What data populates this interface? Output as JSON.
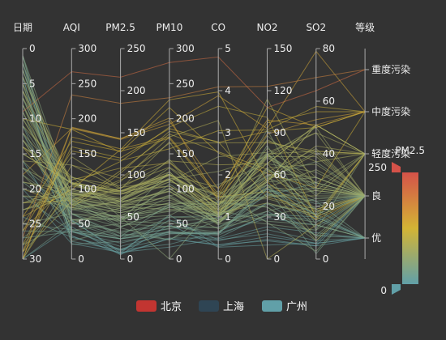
{
  "chart_data": {
    "type": "parallel",
    "title": "",
    "background": "#333333",
    "axes": [
      {
        "name": "日期",
        "type": "value",
        "min": 0,
        "max": 30,
        "inverse": true,
        "ticks": [
          0,
          5,
          10,
          15,
          20,
          25,
          30
        ]
      },
      {
        "name": "AQI",
        "type": "value",
        "min": 0,
        "max": 300,
        "ticks": [
          0,
          50,
          100,
          150,
          200,
          250,
          300
        ]
      },
      {
        "name": "PM2.5",
        "type": "value",
        "min": 0,
        "max": 250,
        "ticks": [
          0,
          50,
          100,
          150,
          200,
          250
        ]
      },
      {
        "name": "PM10",
        "type": "value",
        "min": 0,
        "max": 300,
        "ticks": [
          0,
          50,
          100,
          150,
          200,
          250,
          300
        ]
      },
      {
        "name": "CO",
        "type": "value",
        "min": 0,
        "max": 5,
        "ticks": [
          0,
          1,
          2,
          3,
          4,
          5
        ]
      },
      {
        "name": "NO2",
        "type": "value",
        "min": 0,
        "max": 150,
        "ticks": [
          0,
          30,
          60,
          90,
          120,
          150
        ]
      },
      {
        "name": "SO2",
        "type": "value",
        "min": 0,
        "max": 80,
        "ticks": [
          0,
          20,
          40,
          60,
          80
        ]
      },
      {
        "name": "等级",
        "type": "category",
        "categories": [
          "优",
          "良",
          "轻度污染",
          "中度污染",
          "重度污染"
        ]
      }
    ],
    "series": [
      {
        "name": "北京",
        "color": "#c23531",
        "rows": [
          [
            1,
            55,
            9,
            56,
            0.46,
            18,
            6,
            "良"
          ],
          [
            2,
            25,
            11,
            21,
            0.65,
            34,
            9,
            "优"
          ],
          [
            3,
            56,
            7,
            63,
            0.3,
            14,
            5,
            "良"
          ],
          [
            4,
            33,
            7,
            29,
            0.33,
            16,
            6,
            "优"
          ],
          [
            5,
            42,
            24,
            44,
            0.76,
            40,
            16,
            "优"
          ],
          [
            6,
            82,
            58,
            90,
            1.77,
            68,
            33,
            "良"
          ],
          [
            7,
            74,
            49,
            77,
            1.46,
            48,
            27,
            "良"
          ],
          [
            8,
            78,
            55,
            80,
            1.29,
            59,
            29,
            "良"
          ],
          [
            9,
            267,
            216,
            280,
            4.8,
            108,
            64,
            "重度污染"
          ],
          [
            10,
            185,
            127,
            216,
            2.52,
            61,
            27,
            "中度污染"
          ],
          [
            11,
            39,
            19,
            38,
            0.57,
            31,
            15,
            "优"
          ],
          [
            12,
            41,
            11,
            40,
            0.43,
            21,
            7,
            "优"
          ],
          [
            13,
            64,
            38,
            74,
            1.04,
            46,
            22,
            "良"
          ],
          [
            14,
            108,
            79,
            120,
            1.7,
            75,
            41,
            "轻度污染"
          ],
          [
            15,
            108,
            63,
            116,
            1.48,
            44,
            26,
            "轻度污染"
          ],
          [
            16,
            33,
            6,
            29,
            0.34,
            13,
            5,
            "优"
          ],
          [
            17,
            94,
            66,
            110,
            1.54,
            62,
            31,
            "良"
          ],
          [
            18,
            186,
            142,
            192,
            3.88,
            93,
            79,
            "中度污染"
          ],
          [
            19,
            57,
            31,
            54,
            0.96,
            32,
            14,
            "良"
          ],
          [
            20,
            22,
            8,
            17,
            0.48,
            23,
            10,
            "优"
          ],
          [
            21,
            39,
            15,
            36,
            0.61,
            29,
            13,
            "优"
          ],
          [
            22,
            94,
            69,
            114,
            2.08,
            73,
            39,
            "良"
          ],
          [
            23,
            99,
            73,
            110,
            2.43,
            76,
            48,
            "良"
          ],
          [
            24,
            31,
            12,
            30,
            0.5,
            32,
            16,
            "优"
          ],
          [
            25,
            42,
            27,
            43,
            1,
            53,
            22,
            "优"
          ],
          [
            26,
            154,
            117,
            157,
            3.05,
            92,
            58,
            "中度污染"
          ],
          [
            27,
            234,
            185,
            230,
            4.09,
            123,
            69,
            "重度污染"
          ],
          [
            28,
            160,
            120,
            186,
            2.77,
            91,
            50,
            "中度污染"
          ],
          [
            29,
            134,
            96,
            165,
            2.76,
            83,
            41,
            "轻度污染"
          ],
          [
            30,
            52,
            24,
            60,
            1.03,
            50,
            21,
            "良"
          ],
          [
            31,
            46,
            5,
            49,
            0.28,
            10,
            6,
            "优"
          ]
        ]
      },
      {
        "name": "上海",
        "color": "#2f4554",
        "rows": [
          [
            1,
            26,
            37,
            27,
            1.163,
            27,
            13,
            "优"
          ],
          [
            2,
            85,
            62,
            71,
            1.195,
            60,
            8,
            "良"
          ],
          [
            3,
            78,
            38,
            74,
            1.363,
            37,
            7,
            "良"
          ],
          [
            4,
            21,
            21,
            36,
            0.634,
            40,
            9,
            "优"
          ],
          [
            5,
            41,
            42,
            46,
            0.915,
            81,
            13,
            "优"
          ],
          [
            6,
            56,
            52,
            69,
            1.067,
            92,
            16,
            "良"
          ],
          [
            7,
            64,
            30,
            28,
            0.924,
            51,
            2,
            "良"
          ],
          [
            8,
            55,
            48,
            74,
            1.236,
            75,
            26,
            "良"
          ],
          [
            9,
            76,
            85,
            113,
            1.237,
            114,
            27,
            "良"
          ],
          [
            10,
            91,
            81,
            104,
            1.041,
            56,
            40,
            "良"
          ],
          [
            11,
            84,
            39,
            60,
            0.964,
            25,
            11,
            "良"
          ],
          [
            12,
            64,
            51,
            101,
            0.862,
            58,
            23,
            "良"
          ],
          [
            13,
            70,
            69,
            120,
            1.198,
            65,
            36,
            "良"
          ],
          [
            14,
            77,
            105,
            178,
            2.549,
            64,
            16,
            "良"
          ],
          [
            15,
            109,
            68,
            87,
            0.996,
            74,
            29,
            "轻度污染"
          ],
          [
            16,
            73,
            68,
            97,
            0.905,
            51,
            34,
            "良"
          ],
          [
            17,
            54,
            27,
            47,
            0.592,
            53,
            12,
            "良"
          ],
          [
            18,
            51,
            61,
            97,
            0.811,
            65,
            19,
            "良"
          ],
          [
            19,
            91,
            71,
            121,
            1.374,
            43,
            18,
            "良"
          ],
          [
            20,
            73,
            102,
            182,
            2.787,
            44,
            19,
            "良"
          ],
          [
            21,
            73,
            50,
            76,
            0.717,
            31,
            20,
            "良"
          ],
          [
            22,
            84,
            94,
            140,
            2.238,
            68,
            18,
            "良"
          ],
          [
            23,
            93,
            77,
            104,
            1.165,
            53,
            7,
            "良"
          ],
          [
            24,
            99,
            130,
            227,
            3.97,
            55,
            15,
            "良"
          ],
          [
            25,
            146,
            84,
            139,
            1.094,
            40,
            17,
            "轻度污染"
          ],
          [
            26,
            113,
            108,
            137,
            1.481,
            48,
            15,
            "轻度污染"
          ],
          [
            27,
            81,
            48,
            62,
            1.619,
            26,
            3,
            "良"
          ],
          [
            28,
            56,
            48,
            68,
            1.336,
            37,
            9,
            "良"
          ],
          [
            29,
            82,
            92,
            174,
            3.29,
            0,
            13,
            "良"
          ],
          [
            30,
            106,
            116,
            188,
            3.628,
            101,
            16,
            "轻度污染"
          ],
          [
            31,
            118,
            50,
            0,
            1.383,
            76,
            11,
            "轻度污染"
          ]
        ]
      },
      {
        "name": "广州",
        "color": "#61a0a8",
        "rows": [
          [
            1,
            91,
            45,
            125,
            0.82,
            34,
            23,
            "良"
          ],
          [
            2,
            65,
            27,
            78,
            0.86,
            45,
            29,
            "良"
          ],
          [
            3,
            83,
            60,
            84,
            1.09,
            73,
            27,
            "良"
          ],
          [
            4,
            109,
            81,
            121,
            1.28,
            68,
            51,
            "轻度污染"
          ],
          [
            5,
            106,
            77,
            114,
            1.07,
            55,
            51,
            "轻度污染"
          ],
          [
            6,
            109,
            81,
            121,
            1.28,
            68,
            51,
            "轻度污染"
          ],
          [
            7,
            106,
            77,
            114,
            1.07,
            55,
            51,
            "轻度污染"
          ],
          [
            8,
            89,
            65,
            78,
            0.86,
            51,
            26,
            "良"
          ],
          [
            9,
            53,
            33,
            47,
            0.64,
            50,
            17,
            "良"
          ],
          [
            10,
            80,
            55,
            80,
            1.01,
            75,
            24,
            "良"
          ],
          [
            11,
            117,
            81,
            124,
            1.03,
            45,
            24,
            "轻度污染"
          ],
          [
            12,
            99,
            71,
            142,
            1.1,
            62,
            42,
            "良"
          ],
          [
            13,
            95,
            69,
            130,
            1.28,
            74,
            50,
            "良"
          ],
          [
            14,
            116,
            87,
            131,
            1.47,
            84,
            40,
            "轻度污染"
          ],
          [
            15,
            108,
            80,
            121,
            1.3,
            85,
            37,
            "轻度污染"
          ],
          [
            16,
            134,
            83,
            167,
            1.16,
            57,
            43,
            "轻度污染"
          ],
          [
            17,
            79,
            43,
            107,
            1.05,
            59,
            37,
            "良"
          ],
          [
            18,
            71,
            46,
            89,
            0.86,
            64,
            25,
            "良"
          ],
          [
            19,
            97,
            71,
            113,
            1.17,
            88,
            31,
            "良"
          ],
          [
            20,
            84,
            57,
            91,
            0.85,
            55,
            31,
            "良"
          ],
          [
            21,
            87,
            63,
            101,
            0.9,
            56,
            41,
            "良"
          ],
          [
            22,
            104,
            77,
            119,
            1.09,
            73,
            48,
            "轻度污染"
          ],
          [
            23,
            87,
            62,
            100,
            1,
            72,
            28,
            "良"
          ],
          [
            24,
            168,
            128,
            172,
            1.49,
            97,
            56,
            "中度污染"
          ],
          [
            25,
            65,
            45,
            51,
            0.74,
            39,
            17,
            "良"
          ],
          [
            26,
            39,
            24,
            38,
            0.61,
            47,
            17,
            "优"
          ],
          [
            27,
            39,
            24,
            39,
            0.59,
            50,
            19,
            "优"
          ],
          [
            28,
            93,
            68,
            96,
            1.05,
            79,
            29,
            "良"
          ],
          [
            29,
            188,
            143,
            197,
            1.66,
            99,
            51,
            "中度污染"
          ],
          [
            30,
            174,
            131,
            174,
            1.55,
            108,
            50,
            "中度污染"
          ],
          [
            31,
            187,
            143,
            201,
            1.39,
            89,
            53,
            "中度污染"
          ]
        ]
      }
    ],
    "legend": {
      "position": "bottom",
      "items": [
        "北京",
        "上海",
        "广州"
      ]
    },
    "visual_map": {
      "dimension": "PM2.5",
      "min": 0,
      "max": 250,
      "text_top": "PM2.5",
      "text_max": "250",
      "text_min": "0",
      "colors": [
        "#61a0a8",
        "#d3b435",
        "#d55249"
      ]
    }
  }
}
